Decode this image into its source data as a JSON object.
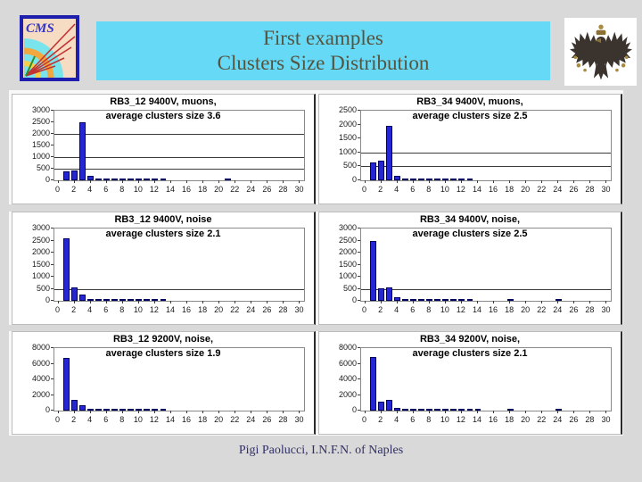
{
  "slide": {
    "background": "#d9d9d9",
    "zone_background": "#f8f8f8"
  },
  "banner": {
    "line1": "First examples",
    "line2": "Clusters Size Distribution",
    "bg": "#66d9f6",
    "text_color": "#55543f"
  },
  "logos": {
    "cms_text": "CMS",
    "cms_name": "cms-experiment-logo",
    "eagle_name": "heraldic-eagle-emblem"
  },
  "footer": {
    "text": "Pigi Paolucci, I.N.F.N. of Naples",
    "color": "#2f2f66"
  },
  "chart_style": {
    "bar_fill": "#2626d2",
    "bar_border": "#000060",
    "gridline": "#3a3a3a",
    "plot_border": "#8a8a8a",
    "title_color": "#000000",
    "axis_label_color": "#1a1a1a"
  },
  "chart_data": [
    {
      "id": "rb3_12_9400v_muons",
      "type": "bar",
      "title_line1": "RB3_12 9400V, muons,",
      "title_line2": "average clusters size 3.6",
      "ymax": 3000,
      "yticks": [
        0,
        500,
        1000,
        1500,
        2000,
        2500,
        3000
      ],
      "gridlines": [
        500,
        1000,
        2000
      ],
      "x_range": [
        0,
        30
      ],
      "xticks": [
        0,
        2,
        4,
        6,
        8,
        10,
        12,
        14,
        16,
        18,
        20,
        22,
        24,
        26,
        28,
        30
      ],
      "values": [
        0,
        380,
        430,
        2500,
        200,
        90,
        60,
        70,
        70,
        65,
        40,
        15,
        35,
        35,
        0,
        0,
        0,
        0,
        0,
        0,
        0,
        25,
        0,
        0,
        0,
        0,
        0,
        0,
        0,
        0,
        0
      ]
    },
    {
      "id": "rb3_34_9400v_muons",
      "type": "bar",
      "title_line1": "RB3_34 9400V, muons,",
      "title_line2": "average clusters size 2.5",
      "ymax": 2500,
      "yticks": [
        0,
        500,
        1000,
        1500,
        2000,
        2500
      ],
      "gridlines": [
        500,
        1000
      ],
      "x_range": [
        0,
        30
      ],
      "xticks": [
        0,
        2,
        4,
        6,
        8,
        10,
        12,
        14,
        16,
        18,
        20,
        22,
        24,
        26,
        28,
        30
      ],
      "values": [
        0,
        650,
        700,
        1950,
        150,
        60,
        35,
        15,
        10,
        10,
        10,
        10,
        10,
        10,
        0,
        0,
        0,
        0,
        0,
        0,
        0,
        0,
        0,
        0,
        0,
        0,
        0,
        0,
        0,
        0,
        0
      ]
    },
    {
      "id": "rb3_12_9400v_noise",
      "type": "bar",
      "title_line1": "RB3_12 9400V, noise",
      "title_line2": "average clusters size 2.1",
      "ymax": 3000,
      "yticks": [
        0,
        500,
        1000,
        1500,
        2000,
        2500,
        3000
      ],
      "gridlines": [
        500
      ],
      "x_range": [
        0,
        30
      ],
      "xticks": [
        0,
        2,
        4,
        6,
        8,
        10,
        12,
        14,
        16,
        18,
        20,
        22,
        24,
        26,
        28,
        30
      ],
      "values": [
        0,
        2600,
        570,
        250,
        50,
        40,
        20,
        60,
        60,
        20,
        15,
        15,
        20,
        15,
        0,
        0,
        0,
        0,
        0,
        0,
        0,
        0,
        0,
        0,
        0,
        0,
        0,
        0,
        0,
        0,
        0
      ]
    },
    {
      "id": "rb3_34_9400v_noise",
      "type": "bar",
      "title_line1": "RB3_34 9400V, noise,",
      "title_line2": "average clusters size 2.5",
      "ymax": 3000,
      "yticks": [
        0,
        500,
        1000,
        1500,
        2000,
        2500,
        3000
      ],
      "gridlines": [
        500
      ],
      "x_range": [
        0,
        30
      ],
      "xticks": [
        0,
        2,
        4,
        6,
        8,
        10,
        12,
        14,
        16,
        18,
        20,
        22,
        24,
        26,
        28,
        30
      ],
      "values": [
        0,
        2480,
        520,
        560,
        150,
        45,
        40,
        40,
        40,
        40,
        40,
        20,
        20,
        30,
        0,
        0,
        0,
        0,
        15,
        0,
        0,
        0,
        0,
        0,
        15,
        0,
        0,
        0,
        0,
        0,
        0
      ]
    },
    {
      "id": "rb3_12_9200v_noise",
      "type": "bar",
      "title_line1": "RB3_12 9200V, noise,",
      "title_line2": "average clusters size 1.9",
      "ymax": 8000,
      "yticks": [
        0,
        2000,
        4000,
        6000,
        8000
      ],
      "gridlines": [],
      "x_range": [
        0,
        30
      ],
      "xticks": [
        0,
        2,
        4,
        6,
        8,
        10,
        12,
        14,
        16,
        18,
        20,
        22,
        24,
        26,
        28,
        30
      ],
      "values": [
        0,
        6700,
        1400,
        650,
        120,
        220,
        120,
        260,
        260,
        120,
        60,
        30,
        30,
        30,
        0,
        0,
        0,
        0,
        0,
        0,
        0,
        0,
        0,
        0,
        0,
        0,
        0,
        0,
        0,
        0,
        0
      ]
    },
    {
      "id": "rb3_34_9200v_noise",
      "type": "bar",
      "title_line1": "RB3_34 9200V, noise,",
      "title_line2": "average clusters size 2.1",
      "ymax": 8000,
      "yticks": [
        0,
        2000,
        4000,
        6000,
        8000
      ],
      "gridlines": [],
      "x_range": [
        0,
        30
      ],
      "xticks": [
        0,
        2,
        4,
        6,
        8,
        10,
        12,
        14,
        16,
        18,
        20,
        22,
        24,
        26,
        28,
        30
      ],
      "values": [
        0,
        6900,
        1100,
        1350,
        300,
        160,
        80,
        80,
        80,
        40,
        40,
        40,
        40,
        80,
        80,
        0,
        0,
        0,
        60,
        0,
        0,
        0,
        0,
        0,
        60,
        0,
        0,
        0,
        0,
        0,
        0
      ]
    }
  ]
}
